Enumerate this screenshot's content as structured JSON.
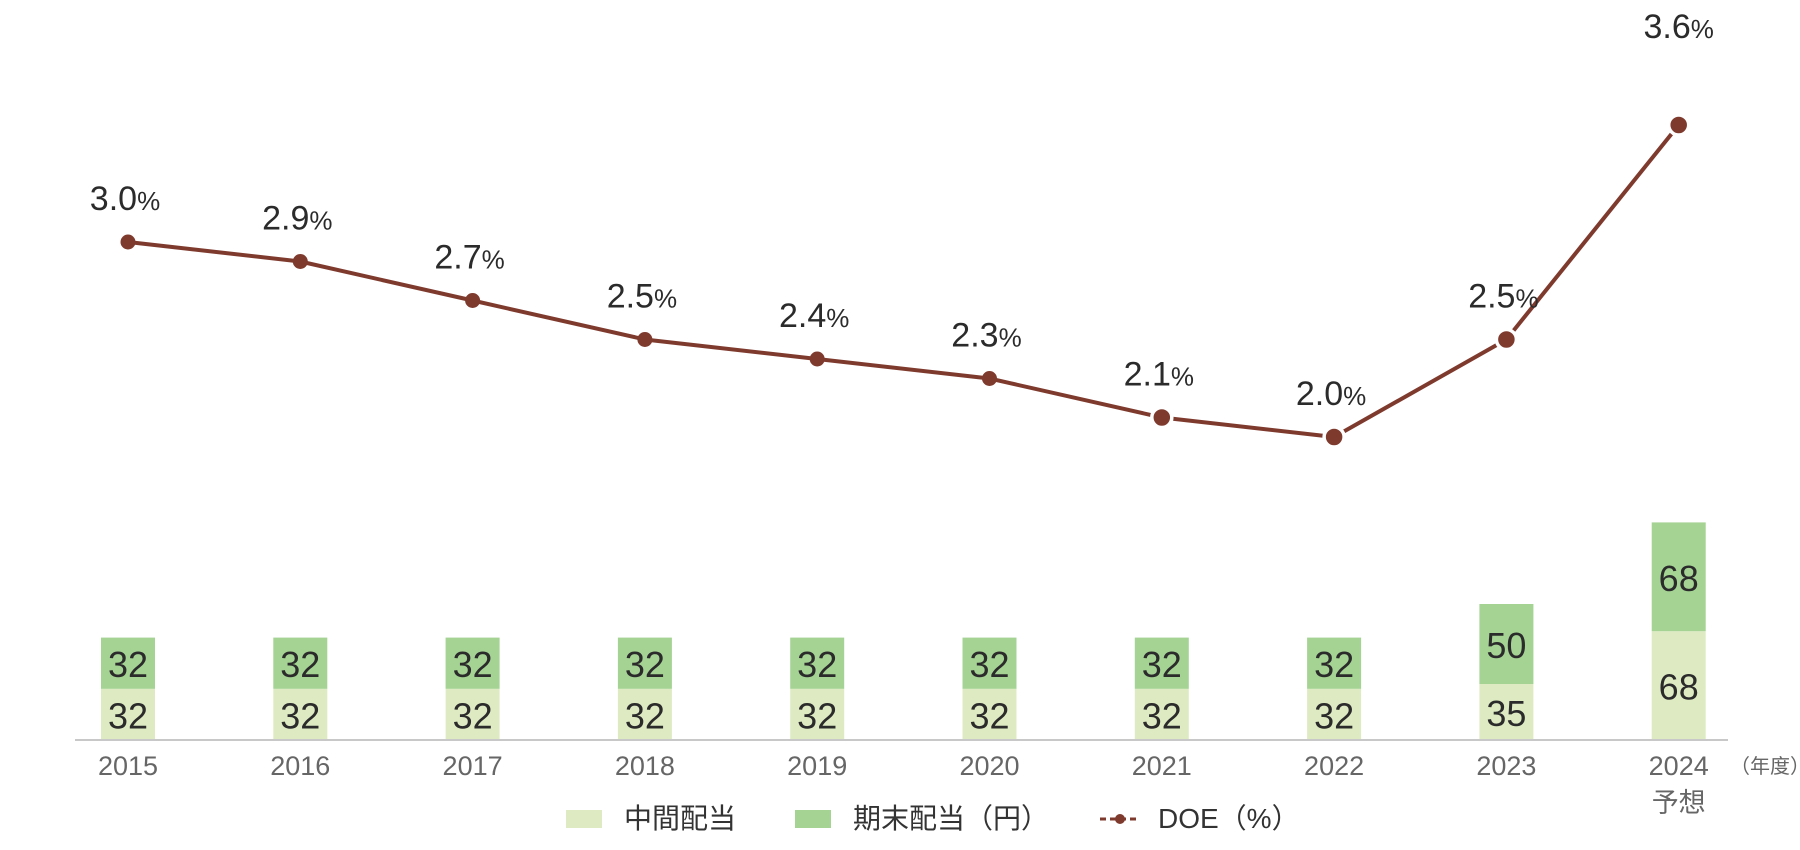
{
  "chart_data": {
    "type": "bar",
    "stacked": true,
    "categories": [
      "2015",
      "2016",
      "2017",
      "2018",
      "2019",
      "2020",
      "2021",
      "2022",
      "2023",
      "2024"
    ],
    "category_sublabels": [
      "",
      "",
      "",
      "",
      "",
      "",
      "",
      "",
      "",
      "予想"
    ],
    "x_unit_label": "（年度）",
    "series": [
      {
        "name": "中間配当",
        "kind": "bar",
        "color": "#deebc2",
        "values": [
          32,
          32,
          32,
          32,
          32,
          32,
          32,
          32,
          35,
          68
        ]
      },
      {
        "name": "期末配当（円）",
        "kind": "bar",
        "color": "#a5d394",
        "values": [
          32,
          32,
          32,
          32,
          32,
          32,
          32,
          32,
          50,
          68
        ]
      },
      {
        "name": "DOE（%）",
        "kind": "line",
        "color": "#7f3a2e",
        "values": [
          3.0,
          2.9,
          2.7,
          2.5,
          2.4,
          2.3,
          2.1,
          2.0,
          2.5,
          3.6
        ],
        "value_suffix": "%"
      }
    ],
    "bar_ylim": [
      0,
      142
    ],
    "line_ylim": [
      1.4,
      3.92
    ],
    "legend_position": "bottom-center",
    "grid": false
  }
}
